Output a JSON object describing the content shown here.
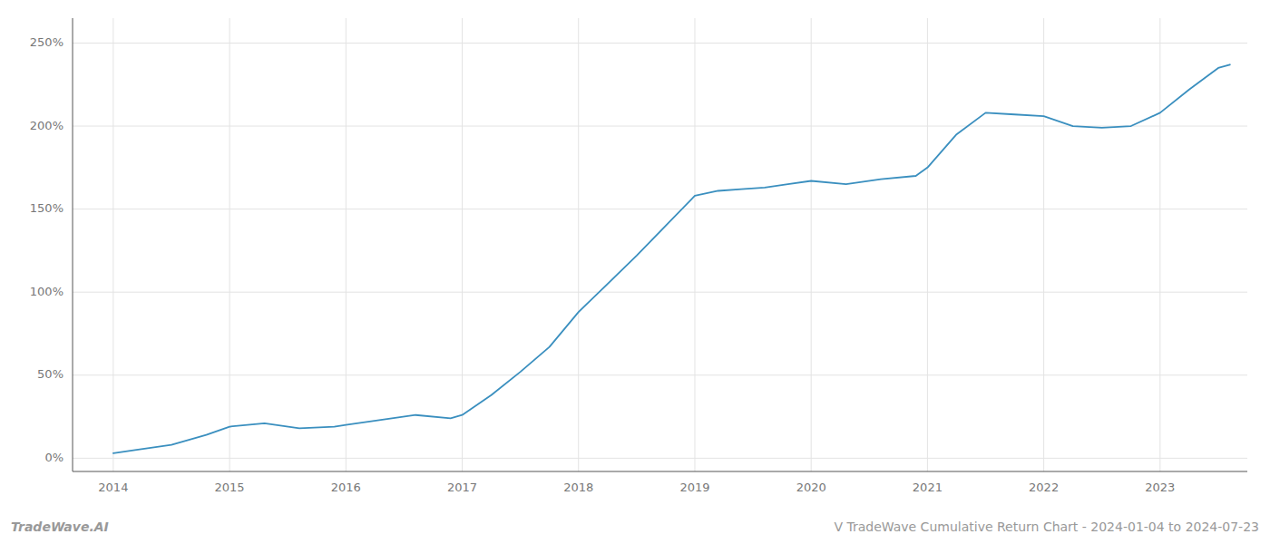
{
  "chart_data": {
    "type": "line",
    "x": [
      2014.0,
      2014.2,
      2014.5,
      2014.8,
      2015.0,
      2015.3,
      2015.6,
      2015.9,
      2016.0,
      2016.3,
      2016.6,
      2016.9,
      2017.0,
      2017.25,
      2017.5,
      2017.75,
      2018.0,
      2018.25,
      2018.5,
      2018.75,
      2019.0,
      2019.2,
      2019.4,
      2019.6,
      2019.8,
      2020.0,
      2020.3,
      2020.6,
      2020.9,
      2021.0,
      2021.25,
      2021.5,
      2021.75,
      2022.0,
      2022.25,
      2022.5,
      2022.75,
      2023.0,
      2023.25,
      2023.5,
      2023.6
    ],
    "values": [
      3,
      5,
      8,
      14,
      19,
      21,
      18,
      19,
      20,
      23,
      26,
      24,
      26,
      38,
      52,
      67,
      88,
      105,
      122,
      140,
      158,
      161,
      162,
      163,
      165,
      167,
      165,
      168,
      170,
      175,
      195,
      208,
      207,
      206,
      200,
      199,
      200,
      208,
      222,
      235,
      237
    ],
    "color": "#3a8fbf",
    "xlim": [
      2013.65,
      2023.75
    ],
    "xticks": [
      2014,
      2015,
      2016,
      2017,
      2018,
      2019,
      2020,
      2021,
      2022,
      2023
    ],
    "ylim": [
      -8,
      265
    ],
    "yticks": [
      {
        "value": 0,
        "label": "0%"
      },
      {
        "value": 50,
        "label": "50%"
      },
      {
        "value": 100,
        "label": "100%"
      },
      {
        "value": 150,
        "label": "150%"
      },
      {
        "value": 200,
        "label": "200%"
      },
      {
        "value": 250,
        "label": "250%"
      }
    ],
    "grid": true,
    "annotations": [
      "TradeWave.AI",
      "V TradeWave Cumulative Return Chart - 2024-01-04 to 2024-07-23"
    ]
  }
}
